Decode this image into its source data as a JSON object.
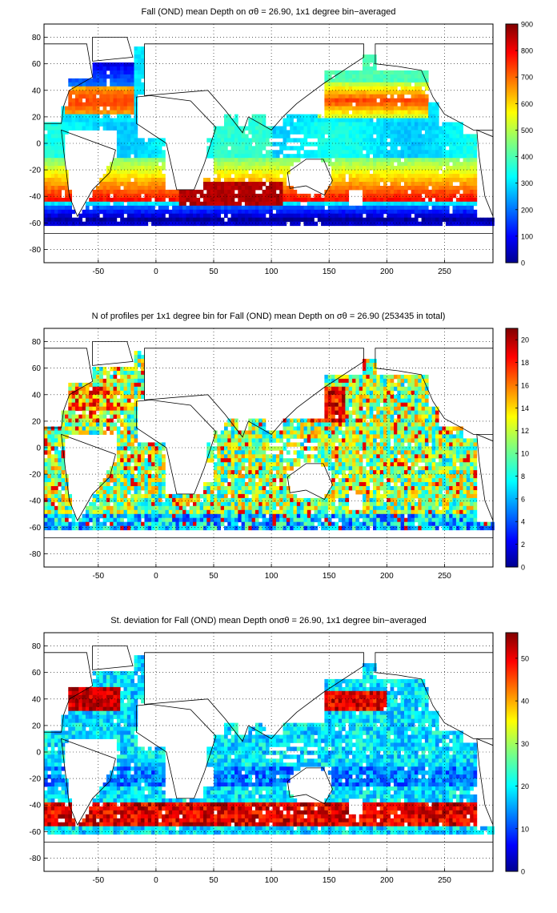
{
  "panels": [
    {
      "title": "Fall (OND) mean Depth on σθ = 26.90, 1x1 degree bin−averaged",
      "variable": "mean-depth",
      "colorbar_ticks": [
        "0",
        "100",
        "200",
        "300",
        "400",
        "500",
        "600",
        "700",
        "800",
        "900"
      ],
      "colorbar_range": [
        0,
        900
      ]
    },
    {
      "title": "N of profiles per 1x1 degree bin for Fall (OND) mean Depth on σθ = 26.90 (253435 in total)",
      "variable": "profile-count",
      "colorbar_ticks": [
        "0",
        "2",
        "4",
        "6",
        "8",
        "10",
        "12",
        "14",
        "16",
        "18",
        "20"
      ],
      "colorbar_range": [
        0,
        21
      ]
    },
    {
      "title": "St. deviation for Fall (OND) mean Depth onσθ = 26.90, 1x1 degree bin−averaged",
      "variable": "std-deviation",
      "colorbar_ticks": [
        "0",
        "10",
        "20",
        "30",
        "40",
        "50"
      ],
      "colorbar_range": [
        0,
        56
      ]
    }
  ],
  "map_axes": {
    "x_ticks": [
      "-50",
      "0",
      "50",
      "100",
      "150",
      "200",
      "250"
    ],
    "x_tick_values": [
      -50,
      0,
      50,
      100,
      150,
      200,
      250
    ],
    "y_ticks": [
      "80",
      "60",
      "40",
      "20",
      "0",
      "-20",
      "-40",
      "-60",
      "-80"
    ],
    "y_tick_values": [
      80,
      60,
      40,
      20,
      0,
      -20,
      -40,
      -60,
      -80
    ],
    "xlim": [
      -97,
      292
    ],
    "ylim": [
      -90,
      90
    ],
    "grid": true,
    "grid_style": "dotted"
  },
  "colors": {
    "colormap": "jet",
    "coastline": "#000000",
    "land": "#ffffff",
    "background": "#ffffff"
  }
}
